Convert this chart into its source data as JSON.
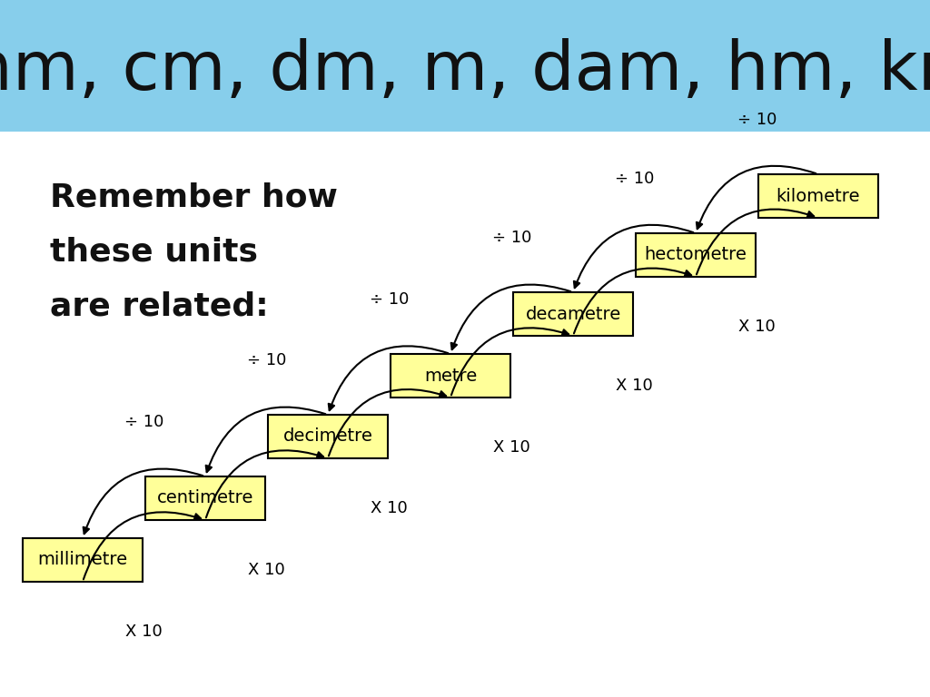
{
  "title": "mm, cm, dm, m, dam, hm, km",
  "title_bg": "#87CEEB",
  "title_color": "#111111",
  "subtitle_lines": [
    "Remember how",
    "these units",
    "are related:"
  ],
  "box_color": "#FFFF99",
  "box_edge_color": "#000000",
  "box_labels": [
    "millimetre",
    "centimetre",
    "decimetre",
    "metre",
    "decametre",
    "hectometre",
    "kilometre"
  ],
  "bg_color": "#FFFFFF",
  "div_label": "÷ 10",
  "mul_label": "X 10"
}
